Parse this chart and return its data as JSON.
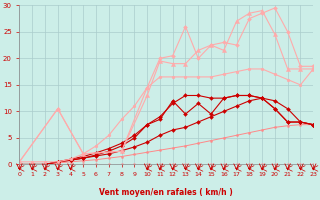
{
  "background_color": "#cceee8",
  "grid_color": "#aacccc",
  "xlabel": "Vent moyen/en rafales ( km/h )",
  "xlabel_color": "#cc0000",
  "tick_color": "#cc0000",
  "xlim": [
    0,
    23
  ],
  "ylim": [
    0,
    30
  ],
  "xticks": [
    0,
    1,
    2,
    3,
    4,
    5,
    6,
    7,
    8,
    9,
    10,
    11,
    12,
    13,
    14,
    15,
    16,
    17,
    18,
    19,
    20,
    21,
    22,
    23
  ],
  "yticks": [
    0,
    5,
    10,
    15,
    20,
    25,
    30
  ],
  "lines": [
    {
      "x": [
        0,
        1,
        2,
        3,
        4,
        5,
        6,
        7,
        8,
        9,
        10,
        11,
        12,
        13,
        14,
        15,
        16,
        17,
        18,
        19,
        20,
        21,
        22,
        23
      ],
      "y": [
        0,
        0,
        0,
        0,
        0,
        0,
        0,
        0,
        0,
        0,
        0,
        0,
        0,
        0,
        0,
        0,
        0,
        0,
        0,
        0,
        0,
        0,
        0,
        0
      ],
      "color": "#ff9999",
      "marker": "o",
      "markersize": 1.5,
      "linewidth": 0.7
    },
    {
      "x": [
        0,
        1,
        2,
        3,
        4,
        5,
        6,
        7,
        8,
        9,
        10,
        11,
        12,
        13,
        14,
        15,
        16,
        17,
        18,
        19,
        20,
        21,
        22,
        23
      ],
      "y": [
        0,
        0,
        0,
        0.3,
        0.5,
        0.7,
        0.9,
        1.2,
        1.5,
        1.9,
        2.3,
        2.7,
        3.1,
        3.5,
        4.0,
        4.5,
        5.0,
        5.5,
        6.0,
        6.5,
        7.0,
        7.3,
        7.5,
        7.5
      ],
      "color": "#ff8888",
      "marker": "o",
      "markersize": 1.5,
      "linewidth": 0.7
    },
    {
      "x": [
        0,
        1,
        2,
        3,
        4,
        5,
        6,
        7,
        8,
        9,
        10,
        11,
        12,
        13,
        14,
        15,
        16,
        17,
        18,
        19,
        20,
        21,
        22,
        23
      ],
      "y": [
        0,
        0,
        0,
        0.5,
        0.8,
        1.2,
        1.6,
        2.0,
        2.6,
        3.3,
        4.2,
        5.5,
        6.5,
        7.0,
        8.0,
        9.0,
        10.0,
        11.0,
        12.0,
        12.5,
        12.0,
        10.5,
        8.0,
        7.5
      ],
      "color": "#cc0000",
      "marker": "D",
      "markersize": 2,
      "linewidth": 0.8
    },
    {
      "x": [
        0,
        1,
        2,
        3,
        4,
        5,
        6,
        7,
        8,
        9,
        10,
        11,
        12,
        13,
        14,
        15,
        16,
        17,
        18,
        19,
        20,
        21,
        22,
        23
      ],
      "y": [
        0,
        0,
        0,
        0.5,
        0.8,
        1.2,
        1.8,
        2.5,
        3.5,
        5.0,
        7.5,
        8.5,
        12.0,
        9.5,
        11.5,
        9.5,
        12.5,
        13.0,
        13.0,
        12.5,
        10.5,
        8.0,
        8.0,
        7.5
      ],
      "color": "#cc0000",
      "marker": "D",
      "markersize": 2,
      "linewidth": 0.8
    },
    {
      "x": [
        0,
        1,
        2,
        3,
        4,
        5,
        6,
        7,
        8,
        9,
        10,
        11,
        12,
        13,
        14,
        15,
        16,
        17,
        18,
        19,
        20,
        21,
        22,
        23
      ],
      "y": [
        0,
        0,
        0,
        0.5,
        1.0,
        1.5,
        2.2,
        3.0,
        4.0,
        5.5,
        7.5,
        9.0,
        11.5,
        13.0,
        13.0,
        12.5,
        12.5,
        13.0,
        13.0,
        12.5,
        10.5,
        8.0,
        8.0,
        7.5
      ],
      "color": "#cc0000",
      "marker": "D",
      "markersize": 2,
      "linewidth": 0.8
    },
    {
      "x": [
        0,
        1,
        2,
        3,
        4,
        5,
        6,
        7,
        8,
        9,
        10,
        11,
        12,
        13,
        14,
        15,
        16,
        17,
        18,
        19,
        20,
        21,
        22,
        23
      ],
      "y": [
        0.5,
        0.5,
        0.5,
        0.5,
        1.0,
        2.0,
        3.5,
        5.5,
        8.5,
        11.0,
        14.5,
        16.5,
        16.5,
        16.5,
        16.5,
        16.5,
        17.0,
        17.5,
        18.0,
        18.0,
        17.0,
        16.0,
        15.0,
        18.0
      ],
      "color": "#ffaaaa",
      "marker": "o",
      "markersize": 2,
      "linewidth": 0.8
    },
    {
      "x": [
        0,
        3,
        5,
        8,
        10,
        11,
        12,
        13,
        14,
        15,
        16,
        17,
        18,
        19,
        20,
        21,
        22,
        23
      ],
      "y": [
        0.5,
        10.5,
        2.0,
        2.5,
        13.0,
        19.5,
        19.0,
        19.0,
        21.5,
        22.5,
        21.5,
        27.0,
        28.5,
        29.0,
        24.5,
        18.0,
        18.0,
        18.0
      ],
      "color": "#ffaaaa",
      "marker": "^",
      "markersize": 3,
      "linewidth": 0.8
    },
    {
      "x": [
        0,
        3,
        5,
        8,
        10,
        11,
        12,
        13,
        14,
        15,
        16,
        17,
        18,
        19,
        20,
        21,
        22,
        23
      ],
      "y": [
        0.5,
        10.5,
        2.0,
        2.5,
        14.5,
        20.0,
        20.5,
        26.0,
        20.0,
        22.5,
        23.0,
        22.5,
        27.5,
        28.5,
        29.5,
        25.0,
        18.5,
        18.5
      ],
      "color": "#ffaaaa",
      "marker": "D",
      "markersize": 2,
      "linewidth": 0.8
    }
  ],
  "arrow_xs_left": [
    0,
    1,
    2,
    3,
    4
  ],
  "arrow_xs_right": [
    10,
    11,
    12,
    13,
    14,
    15,
    16,
    17,
    18,
    19,
    20,
    21,
    22,
    23
  ],
  "arrow_color": "#cc0000"
}
